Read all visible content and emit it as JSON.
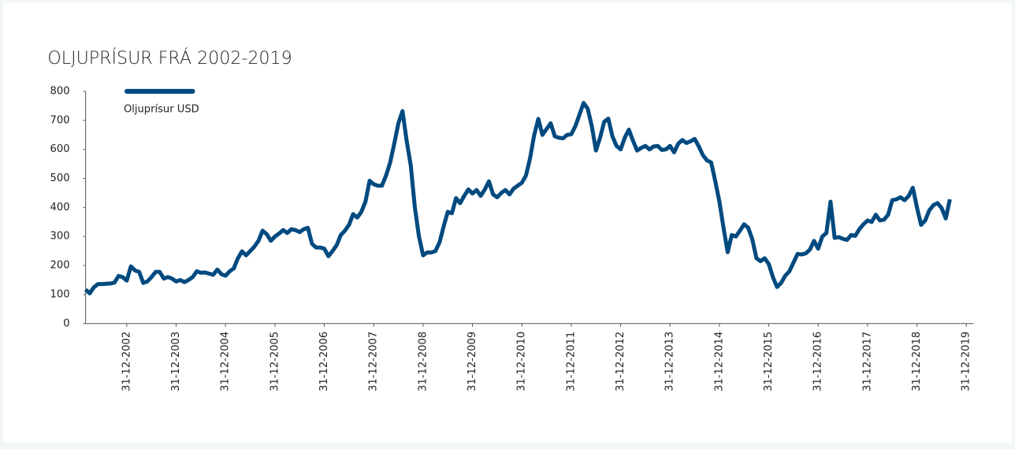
{
  "chart_data": {
    "type": "line",
    "title": "OLJUPRÍSUR FRÁ 2002-2019",
    "categories": [
      null,
      null,
      null,
      null,
      null,
      null,
      null,
      null,
      null,
      null,
      "31-12-2002",
      null,
      null,
      null,
      null,
      null,
      null,
      null,
      null,
      null,
      null,
      null,
      "31-12-2003",
      null,
      null,
      null,
      null,
      null,
      null,
      null,
      null,
      null,
      null,
      null,
      "31-12-2004",
      null,
      null,
      null,
      null,
      null,
      null,
      null,
      null,
      null,
      null,
      null,
      "31-12-2005",
      null,
      null,
      null,
      null,
      null,
      null,
      null,
      null,
      null,
      null,
      null,
      "31-12-2006",
      null,
      null,
      null,
      null,
      null,
      null,
      null,
      null,
      null,
      null,
      null,
      "31-12-2007",
      null,
      null,
      null,
      null,
      null,
      null,
      null,
      null,
      null,
      null,
      null,
      "31-12-2008",
      null,
      null,
      null,
      null,
      null,
      null,
      null,
      null,
      null,
      null,
      null,
      "31-12-2009",
      null,
      null,
      null,
      null,
      null,
      null,
      null,
      null,
      null,
      null,
      null,
      "31-12-2010",
      null,
      null,
      null,
      null,
      null,
      null,
      null,
      null,
      null,
      null,
      null,
      "31-12-2011",
      null,
      null,
      null,
      null,
      null,
      null,
      null,
      null,
      null,
      null,
      null,
      "31-12-2012",
      null,
      null,
      null,
      null,
      null,
      null,
      null,
      null,
      null,
      null,
      null,
      "31-12-2013",
      null,
      null,
      null,
      null,
      null,
      null,
      null,
      null,
      null,
      null,
      null,
      "31-12-2014",
      null,
      null,
      null,
      null,
      null,
      null,
      null,
      null,
      null,
      null,
      null,
      "31-12-2015",
      null,
      null,
      null,
      null,
      null,
      null,
      null,
      null,
      null,
      null,
      null,
      "31-12-2016",
      null,
      null,
      null,
      null,
      null,
      null,
      null,
      null,
      null,
      null,
      null,
      "31-12-2017",
      null,
      null,
      null,
      null,
      null,
      null,
      null,
      null,
      null,
      null,
      null,
      "31-12-2018",
      null,
      null,
      null,
      null,
      null,
      null,
      null,
      null,
      null,
      null,
      null,
      "31-12-2019"
    ],
    "series": [
      {
        "name": "Oljuprísur USD",
        "color": "#004a80",
        "values": [
          117,
          104,
          125,
          136,
          136,
          137,
          138,
          141,
          164,
          160,
          148,
          197,
          183,
          178,
          140,
          145,
          160,
          178,
          178,
          155,
          160,
          155,
          145,
          150,
          143,
          150,
          160,
          180,
          175,
          176,
          172,
          168,
          186,
          170,
          165,
          180,
          190,
          225,
          249,
          235,
          250,
          265,
          285,
          320,
          308,
          285,
          300,
          310,
          322,
          312,
          325,
          322,
          315,
          325,
          330,
          275,
          262,
          262,
          258,
          232,
          250,
          270,
          305,
          320,
          340,
          377,
          365,
          385,
          420,
          492,
          480,
          475,
          475,
          510,
          555,
          620,
          690,
          732,
          630,
          545,
          400,
          300,
          235,
          245,
          245,
          250,
          280,
          335,
          385,
          380,
          432,
          415,
          440,
          462,
          448,
          460,
          440,
          462,
          490,
          445,
          435,
          450,
          460,
          445,
          465,
          475,
          485,
          510,
          570,
          650,
          705,
          650,
          670,
          690,
          645,
          640,
          638,
          650,
          652,
          680,
          720,
          760,
          740,
          680,
          596,
          640,
          695,
          706,
          645,
          612,
          600,
          640,
          668,
          630,
          596,
          605,
          612,
          600,
          610,
          612,
          598,
          600,
          612,
          590,
          620,
          632,
          622,
          628,
          636,
          610,
          580,
          562,
          555,
          490,
          420,
          330,
          246,
          305,
          300,
          320,
          342,
          330,
          290,
          225,
          215,
          225,
          205,
          160,
          126,
          140,
          165,
          180,
          210,
          240,
          238,
          242,
          255,
          285,
          258,
          300,
          312,
          420,
          295,
          298,
          292,
          288,
          305,
          302,
          325,
          342,
          355,
          350,
          375,
          355,
          358,
          375,
          425,
          428,
          435,
          425,
          440,
          468,
          400,
          340,
          355,
          390,
          408,
          415,
          398,
          362,
          428,
          null,
          null,
          null,
          null
        ]
      }
    ],
    "ylim": [
      0,
      800
    ],
    "yticks": [
      0,
      100,
      200,
      300,
      400,
      500,
      600,
      700,
      800
    ],
    "grid": false
  }
}
